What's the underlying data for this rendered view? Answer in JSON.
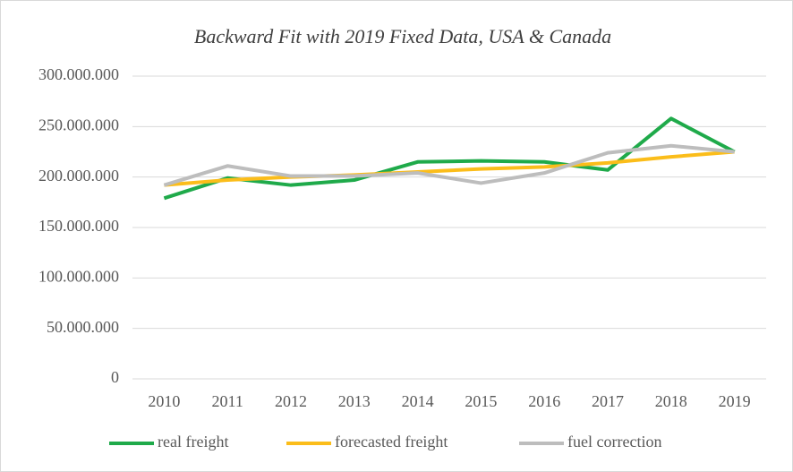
{
  "chart_data": {
    "type": "line",
    "title": "Backward Fit with 2019 Fixed Data, USA & Canada",
    "categories": [
      "2010",
      "2011",
      "2012",
      "2013",
      "2014",
      "2015",
      "2016",
      "2017",
      "2018",
      "2019"
    ],
    "series": [
      {
        "name": "real freight",
        "color": "#1faa4a",
        "values": [
          179000000,
          199000000,
          192000000,
          197000000,
          215000000,
          216000000,
          215000000,
          207000000,
          258000000,
          225000000
        ]
      },
      {
        "name": "forecasted freight",
        "color": "#fbbd1a",
        "values": [
          192000000,
          197000000,
          200000000,
          202000000,
          205000000,
          208000000,
          210000000,
          214000000,
          220000000,
          225000000
        ]
      },
      {
        "name": "fuel correction",
        "color": "#bdbdbd",
        "values": [
          192000000,
          211000000,
          201000000,
          201000000,
          204000000,
          194000000,
          204000000,
          224000000,
          231000000,
          225000000
        ]
      }
    ],
    "ylim": [
      0,
      300000000
    ],
    "yticks": [
      0,
      {
        "value": 50000000,
        "label": "50.000.000"
      },
      {
        "value": 100000000,
        "label": "100.000.000"
      },
      {
        "value": 150000000,
        "label": "150.000.000"
      },
      {
        "value": 200000000,
        "label": "200.000.000"
      },
      {
        "value": 250000000,
        "label": "250.000.000"
      },
      {
        "value": 300000000,
        "label": "300.000.000"
      }
    ],
    "grid": true,
    "legend": "bottom"
  }
}
